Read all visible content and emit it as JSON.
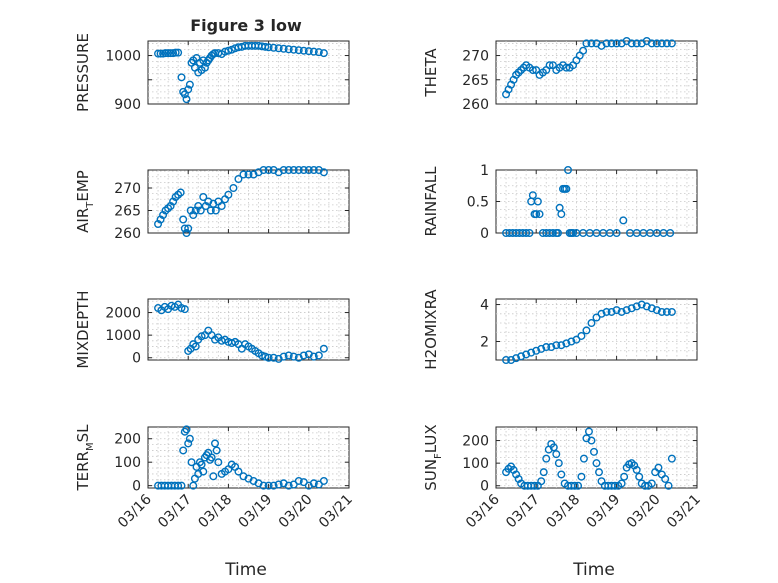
{
  "figure": {
    "title": "Figure 3 low",
    "colors": {
      "marker": "#0072BD",
      "axis": "#262626",
      "grid": "#c8c8c8"
    }
  },
  "chart_data": [
    {
      "type": "scatter",
      "ylabel": "PRESSURE",
      "ylim": [
        900,
        1030
      ],
      "yticks": [
        900,
        950,
        1000
      ],
      "ytick_labels": [
        "900",
        "",
        "1000"
      ],
      "xlim": [
        "03/16",
        "03/21"
      ],
      "xticks": [
        "03/16",
        "03/17",
        "03/18",
        "03/19",
        "03/20",
        "03/21"
      ],
      "grid": true,
      "x": [
        "03/16 06:00",
        "03/16 07:30",
        "03/16 09:00",
        "03/16 10:30",
        "03/16 12:00",
        "03/16 13:30",
        "03/16 15:00",
        "03/16 16:30",
        "03/16 18:00",
        "03/16 20:00",
        "03/16 21:00",
        "03/16 22:00",
        "03/16 23:00",
        "03/17 00:00",
        "03/17 01:00",
        "03/17 02:00",
        "03/17 03:00",
        "03/17 04:00",
        "03/17 05:00",
        "03/17 06:00",
        "03/17 07:00",
        "03/17 08:00",
        "03/17 09:00",
        "03/17 10:00",
        "03/17 11:00",
        "03/17 12:00",
        "03/17 13:00",
        "03/17 14:00",
        "03/17 15:00",
        "03/17 16:00",
        "03/17 18:00",
        "03/17 20:00",
        "03/17 22:00",
        "03/18 00:00",
        "03/18 02:00",
        "03/18 04:00",
        "03/18 06:00",
        "03/18 08:00",
        "03/18 10:00",
        "03/18 12:00",
        "03/18 14:00",
        "03/18 16:00",
        "03/18 18:00",
        "03/18 20:00",
        "03/18 22:00",
        "03/19 00:00",
        "03/19 03:00",
        "03/19 06:00",
        "03/19 09:00",
        "03/19 12:00",
        "03/19 15:00",
        "03/19 18:00",
        "03/19 21:00",
        "03/20 00:00",
        "03/20 03:00",
        "03/20 06:00",
        "03/20 09:00"
      ],
      "y": [
        1004,
        1004,
        1004,
        1005,
        1005,
        1005,
        1005,
        1006,
        1006,
        955,
        925,
        920,
        910,
        930,
        940,
        985,
        990,
        975,
        995,
        965,
        985,
        970,
        990,
        975,
        985,
        990,
        995,
        1000,
        1003,
        1005,
        1005,
        1003,
        1008,
        1010,
        1012,
        1015,
        1017,
        1018,
        1020,
        1020,
        1020,
        1020,
        1020,
        1019,
        1018,
        1017,
        1016,
        1015,
        1014,
        1013,
        1012,
        1011,
        1010,
        1009,
        1008,
        1007,
        1005
      ]
    },
    {
      "type": "scatter",
      "ylabel": "THETA",
      "ylim": [
        260,
        273
      ],
      "yticks": [
        260,
        265,
        270
      ],
      "ytick_labels": [
        "260",
        "265",
        "270"
      ],
      "xlim": [
        "03/16",
        "03/21"
      ],
      "xticks": [
        "03/16",
        "03/17",
        "03/18",
        "03/19",
        "03/20",
        "03/21"
      ],
      "grid": true,
      "x": [
        "03/16 06:00",
        "03/16 07:30",
        "03/16 09:00",
        "03/16 10:30",
        "03/16 12:00",
        "03/16 13:30",
        "03/16 15:00",
        "03/16 16:30",
        "03/16 18:00",
        "03/16 20:00",
        "03/16 22:00",
        "03/17 00:00",
        "03/17 02:00",
        "03/17 04:00",
        "03/17 06:00",
        "03/17 08:00",
        "03/17 10:00",
        "03/17 12:00",
        "03/17 14:00",
        "03/17 16:00",
        "03/17 18:00",
        "03/17 20:00",
        "03/17 22:00",
        "03/18 00:00",
        "03/18 02:00",
        "03/18 04:00",
        "03/18 06:00",
        "03/18 09:00",
        "03/18 12:00",
        "03/18 15:00",
        "03/18 18:00",
        "03/18 21:00",
        "03/19 00:00",
        "03/19 03:00",
        "03/19 06:00",
        "03/19 09:00",
        "03/19 12:00",
        "03/19 15:00",
        "03/19 18:00",
        "03/19 21:00",
        "03/20 00:00",
        "03/20 03:00",
        "03/20 06:00",
        "03/20 09:00"
      ],
      "y": [
        262,
        263,
        264,
        265,
        266,
        266.5,
        267,
        267.5,
        268,
        267.5,
        267,
        267,
        266,
        266.5,
        267,
        268,
        268,
        267,
        267.5,
        268,
        267.5,
        267.5,
        268,
        269,
        270,
        271,
        272.5,
        272.5,
        272.5,
        272,
        272.5,
        272.5,
        272.5,
        272.5,
        273,
        272.5,
        272.5,
        272.5,
        273,
        272.5,
        272.5,
        272.5,
        272.5,
        272.5
      ]
    },
    {
      "type": "scatter",
      "ylabel": "AIR_TEMP",
      "ylim": [
        260,
        274
      ],
      "yticks": [
        260,
        265,
        270
      ],
      "ytick_labels": [
        "260",
        "265",
        "270"
      ],
      "xlim": [
        "03/16",
        "03/21"
      ],
      "xticks": [
        "03/16",
        "03/17",
        "03/18",
        "03/19",
        "03/20",
        "03/21"
      ],
      "grid": true,
      "x": [
        "03/16 06:00",
        "03/16 07:30",
        "03/16 09:00",
        "03/16 10:30",
        "03/16 12:00",
        "03/16 13:30",
        "03/16 15:00",
        "03/16 16:30",
        "03/16 18:00",
        "03/16 19:30",
        "03/16 21:00",
        "03/16 22:00",
        "03/16 23:00",
        "03/17 00:00",
        "03/17 01:30",
        "03/17 03:00",
        "03/17 04:30",
        "03/17 06:00",
        "03/17 07:30",
        "03/17 09:00",
        "03/17 10:30",
        "03/17 12:00",
        "03/17 13:30",
        "03/17 15:00",
        "03/17 16:30",
        "03/17 18:00",
        "03/17 20:00",
        "03/17 22:00",
        "03/18 00:00",
        "03/18 03:00",
        "03/18 06:00",
        "03/18 09:00",
        "03/18 12:00",
        "03/18 15:00",
        "03/18 18:00",
        "03/18 21:00",
        "03/19 00:00",
        "03/19 03:00",
        "03/19 06:00",
        "03/19 09:00",
        "03/19 12:00",
        "03/19 15:00",
        "03/19 18:00",
        "03/19 21:00",
        "03/20 00:00",
        "03/20 03:00",
        "03/20 06:00",
        "03/20 09:00"
      ],
      "y": [
        262,
        263,
        264,
        265,
        265.5,
        266,
        267,
        268,
        268.5,
        269,
        263,
        261,
        260,
        261,
        265,
        264,
        265,
        266,
        265,
        268,
        266,
        267,
        265,
        266.5,
        265,
        267,
        266,
        267.5,
        268.5,
        270,
        272,
        273,
        273,
        273,
        273.5,
        274,
        274.5,
        274,
        273.5,
        274,
        274.5,
        275,
        275,
        274.5,
        274.5,
        274,
        274,
        273.5
      ]
    },
    {
      "type": "scatter",
      "ylabel": "RAINFALL",
      "ylim": [
        0,
        1
      ],
      "yticks": [
        0,
        0.5,
        1
      ],
      "ytick_labels": [
        "0",
        "0.5",
        "1"
      ],
      "xlim": [
        "03/16",
        "03/21"
      ],
      "xticks": [
        "03/16",
        "03/17",
        "03/18",
        "03/19",
        "03/20",
        "03/21"
      ],
      "grid": true,
      "x": [
        "03/16 06:00",
        "03/16 08:00",
        "03/16 10:00",
        "03/16 12:00",
        "03/16 14:00",
        "03/16 16:00",
        "03/16 18:00",
        "03/16 20:00",
        "03/16 21:00",
        "03/16 22:00",
        "03/16 23:00",
        "03/17 00:00",
        "03/17 01:00",
        "03/17 02:00",
        "03/17 04:00",
        "03/17 06:00",
        "03/17 08:00",
        "03/17 10:00",
        "03/17 12:00",
        "03/17 13:00",
        "03/17 14:00",
        "03/17 15:00",
        "03/17 16:00",
        "03/17 17:00",
        "03/17 18:00",
        "03/17 19:00",
        "03/17 20:00",
        "03/17 21:00",
        "03/17 22:00",
        "03/18 00:00",
        "03/18 04:00",
        "03/18 08:00",
        "03/18 12:00",
        "03/18 16:00",
        "03/18 20:00",
        "03/19 00:00",
        "03/19 04:00",
        "03/19 08:00",
        "03/19 12:00",
        "03/19 16:00",
        "03/19 20:00",
        "03/20 00:00",
        "03/20 04:00",
        "03/20 08:00"
      ],
      "y": [
        0,
        0,
        0,
        0,
        0,
        0,
        0,
        0,
        0.5,
        0.6,
        0.3,
        0.3,
        0.5,
        0.3,
        0,
        0,
        0,
        0,
        0,
        0,
        0.4,
        0.3,
        0.7,
        0.7,
        0.7,
        1,
        0,
        0,
        0,
        0,
        0,
        0,
        0,
        0,
        0,
        0,
        0.2,
        0,
        0,
        0,
        0,
        0,
        0,
        0
      ]
    },
    {
      "type": "scatter",
      "ylabel": "MIXDEPTH",
      "ylim": [
        -100,
        2600
      ],
      "yticks": [
        0,
        1000,
        2000
      ],
      "ytick_labels": [
        "0",
        "1000",
        "2000"
      ],
      "xlim": [
        "03/16",
        "03/21"
      ],
      "xticks": [
        "03/16",
        "03/17",
        "03/18",
        "03/19",
        "03/20",
        "03/21"
      ],
      "grid": true,
      "x": [
        "03/16 06:00",
        "03/16 08:00",
        "03/16 10:00",
        "03/16 12:00",
        "03/16 14:00",
        "03/16 16:00",
        "03/16 18:00",
        "03/16 20:00",
        "03/16 22:00",
        "03/17 00:00",
        "03/17 01:30",
        "03/17 03:00",
        "03/17 04:30",
        "03/17 06:00",
        "03/17 08:00",
        "03/17 10:00",
        "03/17 12:00",
        "03/17 14:00",
        "03/17 16:00",
        "03/17 18:00",
        "03/17 20:00",
        "03/17 22:00",
        "03/18 00:00",
        "03/18 02:00",
        "03/18 04:00",
        "03/18 06:00",
        "03/18 08:00",
        "03/18 10:00",
        "03/18 12:00",
        "03/18 14:00",
        "03/18 16:00",
        "03/18 18:00",
        "03/18 20:00",
        "03/18 22:00",
        "03/19 00:00",
        "03/19 03:00",
        "03/19 06:00",
        "03/19 09:00",
        "03/19 12:00",
        "03/19 15:00",
        "03/19 18:00",
        "03/19 21:00",
        "03/20 00:00",
        "03/20 03:00",
        "03/20 06:00",
        "03/20 09:00"
      ],
      "y": [
        2200,
        2100,
        2250,
        2150,
        2300,
        2250,
        2350,
        2200,
        2150,
        300,
        400,
        600,
        500,
        800,
        950,
        1000,
        1200,
        1000,
        800,
        900,
        750,
        800,
        700,
        650,
        700,
        600,
        400,
        600,
        500,
        400,
        300,
        200,
        100,
        50,
        0,
        0,
        -50,
        50,
        100,
        50,
        0,
        100,
        150,
        50,
        100,
        400
      ]
    },
    {
      "type": "scatter",
      "ylabel": "H2OMIXRA",
      "ylim": [
        1,
        4.3
      ],
      "yticks": [
        2,
        4
      ],
      "ytick_labels": [
        "2",
        "4"
      ],
      "xlim": [
        "03/16",
        "03/21"
      ],
      "xticks": [
        "03/16",
        "03/17",
        "03/18",
        "03/19",
        "03/20",
        "03/21"
      ],
      "grid": true,
      "x": [
        "03/16 06:00",
        "03/16 09:00",
        "03/16 12:00",
        "03/16 15:00",
        "03/16 18:00",
        "03/16 21:00",
        "03/17 00:00",
        "03/17 03:00",
        "03/17 06:00",
        "03/17 09:00",
        "03/17 12:00",
        "03/17 15:00",
        "03/17 18:00",
        "03/17 21:00",
        "03/18 00:00",
        "03/18 03:00",
        "03/18 06:00",
        "03/18 09:00",
        "03/18 12:00",
        "03/18 15:00",
        "03/18 18:00",
        "03/18 21:00",
        "03/19 00:00",
        "03/19 03:00",
        "03/19 06:00",
        "03/19 09:00",
        "03/19 12:00",
        "03/19 15:00",
        "03/19 18:00",
        "03/19 21:00",
        "03/20 00:00",
        "03/20 03:00",
        "03/20 06:00",
        "03/20 09:00"
      ],
      "y": [
        1.0,
        1.0,
        1.1,
        1.2,
        1.3,
        1.4,
        1.5,
        1.6,
        1.7,
        1.7,
        1.8,
        1.8,
        1.9,
        2.0,
        2.1,
        2.3,
        2.6,
        3.0,
        3.3,
        3.5,
        3.6,
        3.6,
        3.7,
        3.6,
        3.7,
        3.8,
        3.9,
        4.0,
        3.9,
        3.8,
        3.7,
        3.6,
        3.6,
        3.6
      ]
    },
    {
      "type": "scatter",
      "ylabel": "TERR_MSL",
      "ylim": [
        -10,
        250
      ],
      "yticks": [
        0,
        100,
        200
      ],
      "ytick_labels": [
        "0",
        "100",
        "200"
      ],
      "xlim": [
        "03/16",
        "03/21"
      ],
      "xticks": [
        "03/16",
        "03/17",
        "03/18",
        "03/19",
        "03/20",
        "03/21"
      ],
      "grid": true,
      "x": [
        "03/16 06:00",
        "03/16 08:00",
        "03/16 10:00",
        "03/16 12:00",
        "03/16 14:00",
        "03/16 16:00",
        "03/16 18:00",
        "03/16 20:00",
        "03/16 21:00",
        "03/16 22:00",
        "03/16 23:00",
        "03/17 00:00",
        "03/17 01:00",
        "03/17 02:00",
        "03/17 03:00",
        "03/17 04:00",
        "03/17 05:00",
        "03/17 06:00",
        "03/17 07:00",
        "03/17 08:00",
        "03/17 09:00",
        "03/17 10:00",
        "03/17 11:00",
        "03/17 12:00",
        "03/17 13:00",
        "03/17 14:00",
        "03/17 15:00",
        "03/17 16:00",
        "03/17 17:00",
        "03/17 18:00",
        "03/17 20:00",
        "03/17 22:00",
        "03/18 00:00",
        "03/18 02:00",
        "03/18 04:00",
        "03/18 06:00",
        "03/18 09:00",
        "03/18 12:00",
        "03/18 15:00",
        "03/18 18:00",
        "03/18 21:00",
        "03/19 00:00",
        "03/19 03:00",
        "03/19 06:00",
        "03/19 09:00",
        "03/19 12:00",
        "03/19 15:00",
        "03/19 18:00",
        "03/19 21:00",
        "03/20 00:00",
        "03/20 03:00",
        "03/20 06:00",
        "03/20 09:00"
      ],
      "y": [
        0,
        0,
        0,
        0,
        0,
        0,
        0,
        0,
        150,
        230,
        240,
        180,
        200,
        100,
        0,
        30,
        80,
        50,
        100,
        90,
        60,
        120,
        130,
        140,
        110,
        120,
        40,
        180,
        150,
        100,
        50,
        60,
        70,
        90,
        80,
        60,
        40,
        30,
        20,
        10,
        0,
        0,
        0,
        5,
        10,
        0,
        5,
        20,
        15,
        0,
        10,
        5,
        20
      ]
    },
    {
      "type": "scatter",
      "ylabel": "SUN_FLUX",
      "ylim": [
        -10,
        260
      ],
      "yticks": [
        0,
        100,
        200
      ],
      "ytick_labels": [
        "0",
        "100",
        "200"
      ],
      "xlim": [
        "03/16",
        "03/21"
      ],
      "xticks": [
        "03/16",
        "03/17",
        "03/18",
        "03/19",
        "03/20",
        "03/21"
      ],
      "grid": true,
      "x": [
        "03/16 06:00",
        "03/16 07:30",
        "03/16 09:00",
        "03/16 10:30",
        "03/16 12:00",
        "03/16 13:30",
        "03/16 15:00",
        "03/16 17:00",
        "03/16 19:00",
        "03/16 21:00",
        "03/16 23:00",
        "03/17 01:00",
        "03/17 03:00",
        "03/17 04:30",
        "03/17 06:00",
        "03/17 07:30",
        "03/17 09:00",
        "03/17 10:30",
        "03/17 12:00",
        "03/17 13:30",
        "03/17 15:00",
        "03/17 17:00",
        "03/17 19:00",
        "03/17 21:00",
        "03/17 23:00",
        "03/18 01:00",
        "03/18 03:00",
        "03/18 04:30",
        "03/18 06:00",
        "03/18 07:30",
        "03/18 09:00",
        "03/18 10:30",
        "03/18 12:00",
        "03/18 13:30",
        "03/18 15:00",
        "03/18 17:00",
        "03/18 19:00",
        "03/18 21:00",
        "03/18 23:00",
        "03/19 01:00",
        "03/19 03:00",
        "03/19 04:30",
        "03/19 06:00",
        "03/19 07:30",
        "03/19 09:00",
        "03/19 10:30",
        "03/19 12:00",
        "03/19 13:30",
        "03/19 15:00",
        "03/19 17:00",
        "03/19 19:00",
        "03/19 21:00",
        "03/19 23:00",
        "03/20 01:00",
        "03/20 03:00",
        "03/20 05:00",
        "03/20 07:00",
        "03/20 09:00"
      ],
      "y": [
        60,
        75,
        85,
        70,
        50,
        30,
        10,
        0,
        0,
        0,
        0,
        0,
        20,
        60,
        120,
        160,
        185,
        170,
        140,
        100,
        50,
        10,
        0,
        0,
        0,
        0,
        40,
        120,
        210,
        240,
        200,
        150,
        100,
        60,
        20,
        0,
        0,
        0,
        0,
        0,
        10,
        40,
        80,
        95,
        100,
        90,
        70,
        40,
        10,
        0,
        0,
        10,
        60,
        80,
        50,
        30,
        0,
        120
      ]
    }
  ],
  "x_axis_labels": [
    "Time",
    "Time"
  ]
}
